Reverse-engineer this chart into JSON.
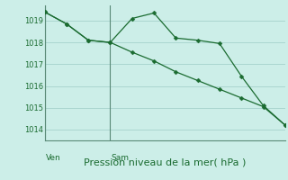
{
  "background_color": "#cceee8",
  "plot_bg_color": "#cceee8",
  "grid_color": "#aad6d0",
  "line_color": "#1a6b30",
  "spine_color": "#5a8a78",
  "xlabel": "Pression niveau de la mer( hPa )",
  "ylim": [
    1013.5,
    1019.7
  ],
  "yticks": [
    1014,
    1015,
    1016,
    1017,
    1018,
    1019
  ],
  "xlim": [
    0,
    11
  ],
  "line1_x": [
    0,
    1,
    2,
    3,
    4,
    5,
    6,
    7,
    8,
    9,
    10,
    11
  ],
  "line1_y": [
    1019.4,
    1018.85,
    1018.1,
    1018.0,
    1019.1,
    1019.35,
    1018.2,
    1018.1,
    1017.95,
    1016.45,
    1015.1,
    1014.2
  ],
  "line2_x": [
    0,
    1,
    2,
    3,
    4,
    5,
    6,
    7,
    8,
    9,
    10,
    11
  ],
  "line2_y": [
    1019.4,
    1018.85,
    1018.1,
    1018.0,
    1017.55,
    1017.15,
    1016.65,
    1016.25,
    1015.85,
    1015.45,
    1015.05,
    1014.2
  ],
  "ven_x": 0,
  "sam_x": 3,
  "ven_label": "Ven",
  "sam_label": "Sam",
  "label_fontsize": 6.5,
  "tick_fontsize": 6,
  "xlabel_fontsize": 8
}
